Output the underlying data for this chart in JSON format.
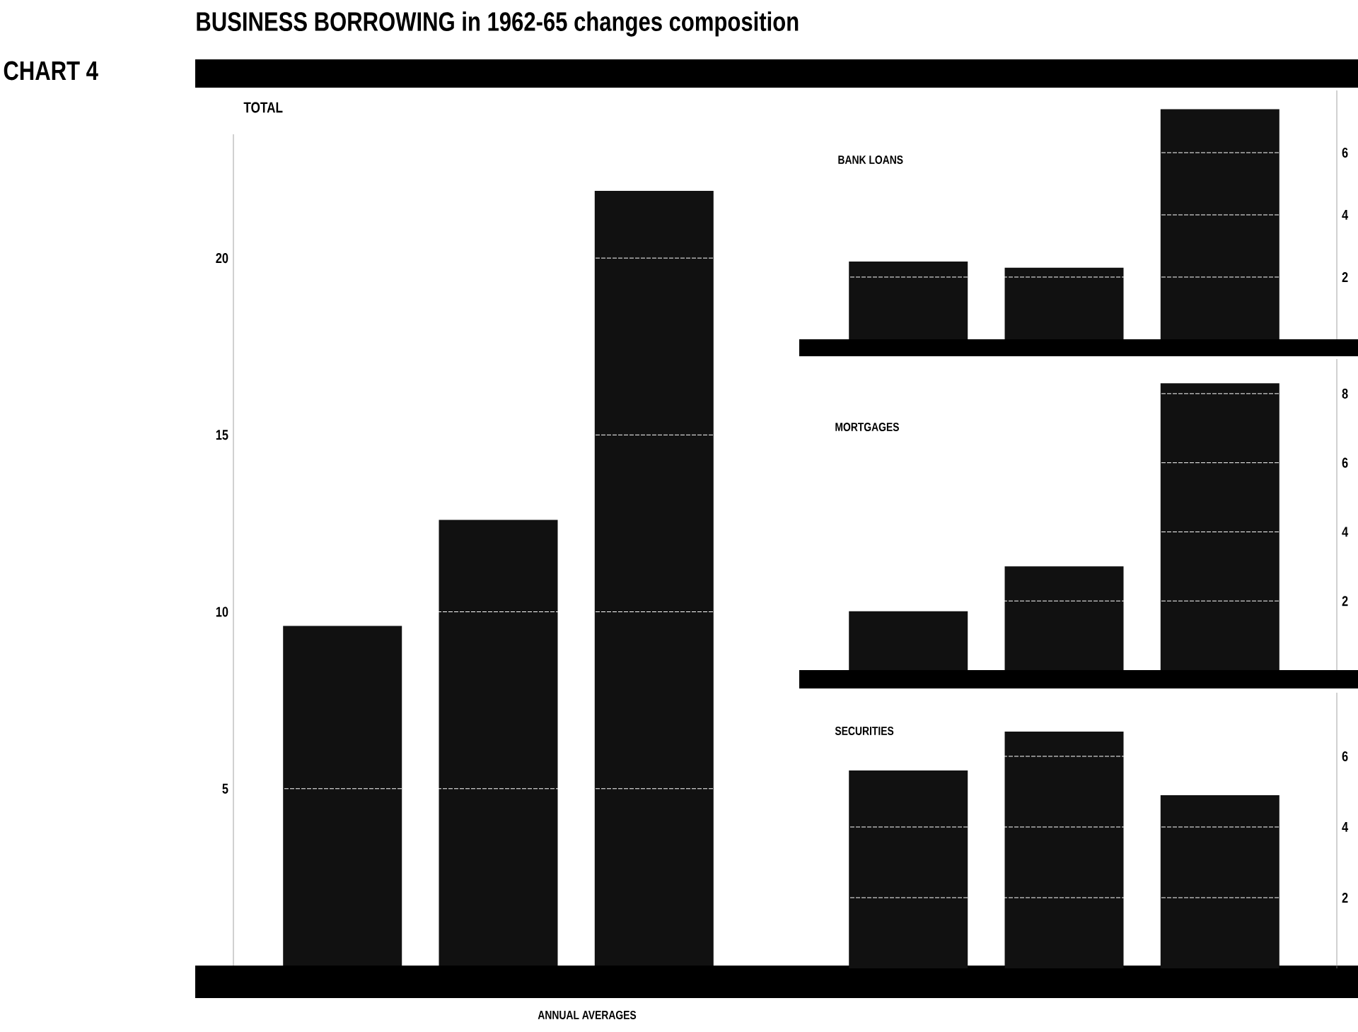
{
  "chart_data": [
    {
      "type": "bar",
      "title": "TOTAL",
      "categories": [
        null,
        null,
        null
      ],
      "values": [
        9.6,
        12.6,
        21.9
      ],
      "color": "#111111",
      "ylim": [
        0,
        23.5
      ],
      "yticks": [
        5,
        10,
        15,
        20
      ],
      "grid": "y",
      "tick_labels": "y",
      "annotations": [
        "BUSINESS BORROWING in 1962-65 changes composition",
        "CHART 4",
        "ANNUAL AVERAGES"
      ]
    },
    {
      "type": "bar",
      "title": "BANK LOANS",
      "categories": [
        null,
        null,
        null
      ],
      "values": [
        2.5,
        2.3,
        7.4
      ],
      "color": "#111111",
      "ylim": [
        0,
        8
      ],
      "yticks": [
        2,
        4,
        6
      ],
      "grid": "y",
      "tick_labels": "y"
    },
    {
      "type": "bar",
      "title": "MORTGAGES",
      "categories": [
        null,
        null,
        null
      ],
      "values": [
        1.7,
        3.0,
        8.3
      ],
      "color": "#111111",
      "ylim": [
        0,
        9
      ],
      "yticks": [
        2,
        4,
        6,
        8
      ],
      "grid": "y",
      "tick_labels": "y"
    },
    {
      "type": "bar",
      "title": "SECURITIES",
      "categories": [
        null,
        null,
        null
      ],
      "values": [
        5.6,
        6.7,
        4.9
      ],
      "color": "#111111",
      "ylim": [
        0,
        7.8
      ],
      "yticks": [
        2,
        4,
        6
      ],
      "grid": "y",
      "tick_labels": "y"
    }
  ]
}
